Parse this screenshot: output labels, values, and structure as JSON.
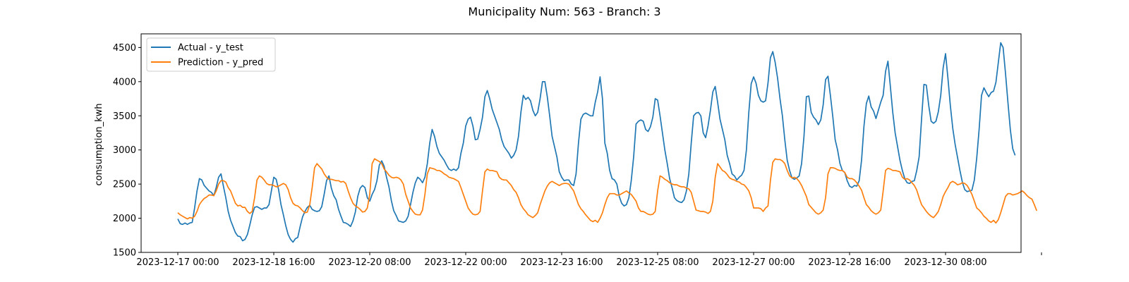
{
  "chart_data": {
    "type": "line",
    "title": "Municipality Num: 563 - Branch: 3",
    "xlabel": "",
    "ylabel": "consumption_kwh",
    "ylim": [
      1500,
      4700
    ],
    "yticks": [
      1500,
      2000,
      2500,
      3000,
      3500,
      4000,
      4500
    ],
    "x_start": "2023-12-17 00:00",
    "x_step_hours": 1,
    "x_range": [
      "2023-12-17 00:00",
      "2023-12-31 09:00"
    ],
    "xticks": [
      {
        "value": "2023-12-17 00:00",
        "label": "2023-12-17 00:00"
      },
      {
        "value": "2023-12-18 16:00",
        "label": "2023-12-18 16:00"
      },
      {
        "value": "2023-12-20 08:00",
        "label": "2023-12-20 08:00"
      },
      {
        "value": "2023-12-22 00:00",
        "label": "2023-12-22 00:00"
      },
      {
        "value": "2023-12-23 16:00",
        "label": "2023-12-23 16:00"
      },
      {
        "value": "2023-12-25 08:00",
        "label": "2023-12-25 08:00"
      },
      {
        "value": "2023-12-27 00:00",
        "label": "2023-12-27 00:00"
      },
      {
        "value": "2023-12-28 16:00",
        "label": "2023-12-28 16:00"
      },
      {
        "value": "2023-12-30 08:00",
        "label": "2023-12-30 08:00"
      },
      {
        "value": "2024-01-01 00:00",
        "label": ""
      }
    ],
    "grid": false,
    "legend_position": "top-left",
    "series": [
      {
        "name": "Actual - y_test",
        "color": "#1f77b4",
        "values": [
          1990,
          1920,
          1910,
          1930,
          1910,
          1930,
          1940,
          2150,
          2400,
          2580,
          2560,
          2480,
          2440,
          2400,
          2380,
          2330,
          2450,
          2600,
          2650,
          2470,
          2300,
          2100,
          1970,
          1880,
          1790,
          1740,
          1730,
          1670,
          1690,
          1760,
          1900,
          2050,
          2160,
          2170,
          2150,
          2130,
          2150,
          2150,
          2200,
          2400,
          2600,
          2570,
          2420,
          2200,
          2050,
          1890,
          1760,
          1690,
          1650,
          1700,
          1720,
          1880,
          2020,
          2100,
          2160,
          2190,
          2130,
          2110,
          2100,
          2110,
          2170,
          2350,
          2550,
          2620,
          2440,
          2330,
          2270,
          2130,
          2030,
          1940,
          1930,
          1910,
          1880,
          1960,
          2090,
          2320,
          2440,
          2480,
          2450,
          2300,
          2250,
          2350,
          2420,
          2550,
          2780,
          2840,
          2760,
          2600,
          2460,
          2260,
          2110,
          2040,
          1960,
          1950,
          1940,
          1960,
          2030,
          2200,
          2380,
          2520,
          2600,
          2570,
          2520,
          2600,
          2800,
          3100,
          3300,
          3200,
          3050,
          2950,
          2900,
          2850,
          2780,
          2720,
          2700,
          2720,
          2700,
          2740,
          2950,
          3100,
          3350,
          3450,
          3480,
          3350,
          3150,
          3160,
          3300,
          3480,
          3780,
          3870,
          3750,
          3600,
          3500,
          3400,
          3300,
          3150,
          3050,
          3000,
          2950,
          2880,
          2920,
          3000,
          3200,
          3550,
          3800,
          3740,
          3770,
          3720,
          3580,
          3500,
          3550,
          3750,
          4000,
          4000,
          3780,
          3500,
          3200,
          3050,
          2900,
          2680,
          2600,
          2550,
          2560,
          2560,
          2500,
          2480,
          2650,
          3100,
          3450,
          3520,
          3540,
          3520,
          3500,
          3500,
          3700,
          3850,
          4070,
          3750,
          3100,
          2950,
          2700,
          2580,
          2560,
          2500,
          2320,
          2220,
          2180,
          2200,
          2300,
          2550,
          2900,
          3380,
          3420,
          3440,
          3420,
          3300,
          3270,
          3340,
          3480,
          3750,
          3730,
          3500,
          3250,
          3000,
          2800,
          2580,
          2450,
          2300,
          2260,
          2240,
          2230,
          2270,
          2400,
          2650,
          3100,
          3500,
          3540,
          3550,
          3500,
          3250,
          3180,
          3350,
          3580,
          3850,
          3930,
          3700,
          3450,
          3300,
          3150,
          2920,
          2800,
          2650,
          2620,
          2560,
          2600,
          2630,
          2700,
          3000,
          3550,
          3970,
          4070,
          3980,
          3800,
          3720,
          3700,
          3720,
          3980,
          4350,
          4440,
          4280,
          4050,
          3750,
          3500,
          3150,
          2850,
          2700,
          2590,
          2570,
          2590,
          2620,
          2800,
          3200,
          3780,
          3790,
          3550,
          3480,
          3440,
          3370,
          3440,
          3660,
          4030,
          4080,
          3800,
          3490,
          3150,
          3000,
          2800,
          2700,
          2670,
          2550,
          2470,
          2450,
          2480,
          2470,
          2550,
          2850,
          3350,
          3680,
          3790,
          3630,
          3570,
          3460,
          3580,
          3700,
          3800,
          4150,
          4300,
          3930,
          3550,
          3250,
          3050,
          2850,
          2700,
          2580,
          2520,
          2510,
          2540,
          2550,
          2700,
          2900,
          3450,
          3960,
          3950,
          3650,
          3420,
          3390,
          3420,
          3560,
          3800,
          4200,
          4410,
          4050,
          3650,
          3320,
          3080,
          2890,
          2700,
          2530,
          2420,
          2390,
          2400,
          2410,
          2560,
          2880,
          3300,
          3800,
          3910,
          3840,
          3780,
          3840,
          3860,
          3990,
          4280,
          4570,
          4500,
          4120,
          3700,
          3300,
          3020,
          2920
        ]
      },
      {
        "name": "Prediction - y_pred",
        "color": "#ff7f0e",
        "values": [
          2080,
          2050,
          2030,
          2010,
          1990,
          2010,
          2000,
          2030,
          2100,
          2200,
          2250,
          2290,
          2310,
          2340,
          2340,
          2330,
          2400,
          2500,
          2550,
          2550,
          2530,
          2450,
          2400,
          2310,
          2220,
          2180,
          2190,
          2160,
          2160,
          2100,
          2070,
          2100,
          2300,
          2560,
          2620,
          2600,
          2560,
          2510,
          2490,
          2490,
          2480,
          2460,
          2470,
          2490,
          2510,
          2490,
          2420,
          2300,
          2220,
          2190,
          2180,
          2150,
          2110,
          2080,
          2090,
          2200,
          2450,
          2740,
          2800,
          2760,
          2720,
          2650,
          2600,
          2570,
          2570,
          2560,
          2550,
          2550,
          2530,
          2540,
          2510,
          2400,
          2300,
          2220,
          2180,
          2160,
          2130,
          2090,
          2100,
          2150,
          2350,
          2800,
          2870,
          2850,
          2830,
          2800,
          2720,
          2680,
          2630,
          2600,
          2590,
          2600,
          2590,
          2560,
          2500,
          2350,
          2250,
          2150,
          2100,
          2060,
          2050,
          2050,
          2120,
          2350,
          2650,
          2740,
          2730,
          2720,
          2700,
          2700,
          2680,
          2650,
          2630,
          2600,
          2590,
          2580,
          2560,
          2540,
          2450,
          2350,
          2250,
          2150,
          2100,
          2060,
          2050,
          2060,
          2100,
          2400,
          2680,
          2720,
          2700,
          2700,
          2690,
          2680,
          2600,
          2570,
          2560,
          2560,
          2520,
          2480,
          2420,
          2380,
          2300,
          2200,
          2140,
          2100,
          2050,
          2030,
          2010,
          2040,
          2080,
          2200,
          2300,
          2400,
          2470,
          2520,
          2540,
          2520,
          2500,
          2480,
          2500,
          2510,
          2510,
          2500,
          2450,
          2400,
          2300,
          2200,
          2140,
          2100,
          2050,
          2010,
          1970,
          1950,
          1970,
          1940,
          2000,
          2080,
          2200,
          2300,
          2360,
          2360,
          2360,
          2340,
          2340,
          2360,
          2380,
          2400,
          2370,
          2350,
          2300,
          2250,
          2150,
          2100,
          2100,
          2080,
          2060,
          2050,
          2060,
          2100,
          2400,
          2620,
          2600,
          2570,
          2550,
          2520,
          2500,
          2490,
          2490,
          2470,
          2460,
          2460,
          2440,
          2430,
          2380,
          2250,
          2120,
          2110,
          2100,
          2100,
          2090,
          2070,
          2100,
          2250,
          2600,
          2800,
          2750,
          2700,
          2680,
          2640,
          2590,
          2570,
          2560,
          2540,
          2530,
          2500,
          2490,
          2450,
          2400,
          2300,
          2150,
          2150,
          2150,
          2140,
          2100,
          2150,
          2180,
          2550,
          2820,
          2870,
          2860,
          2860,
          2840,
          2800,
          2700,
          2620,
          2590,
          2600,
          2580,
          2540,
          2480,
          2400,
          2320,
          2200,
          2160,
          2120,
          2080,
          2060,
          2080,
          2120,
          2300,
          2650,
          2740,
          2740,
          2730,
          2710,
          2700,
          2700,
          2670,
          2600,
          2580,
          2580,
          2560,
          2520,
          2470,
          2410,
          2300,
          2200,
          2160,
          2110,
          2080,
          2060,
          2080,
          2120,
          2400,
          2700,
          2730,
          2720,
          2700,
          2700,
          2690,
          2680,
          2600,
          2570,
          2580,
          2560,
          2520,
          2480,
          2410,
          2300,
          2200,
          2150,
          2100,
          2060,
          2030,
          2010,
          2050,
          2100,
          2200,
          2320,
          2390,
          2450,
          2520,
          2540,
          2520,
          2490,
          2500,
          2520,
          2510,
          2480,
          2420,
          2350,
          2250,
          2150,
          2120,
          2080,
          2030,
          2000,
          1960,
          1940,
          1970,
          1930,
          1980,
          2080,
          2200,
          2320,
          2360,
          2360,
          2340,
          2350,
          2360,
          2380,
          2400,
          2370,
          2330,
          2300,
          2280,
          2200,
          2110
        ]
      }
    ]
  }
}
